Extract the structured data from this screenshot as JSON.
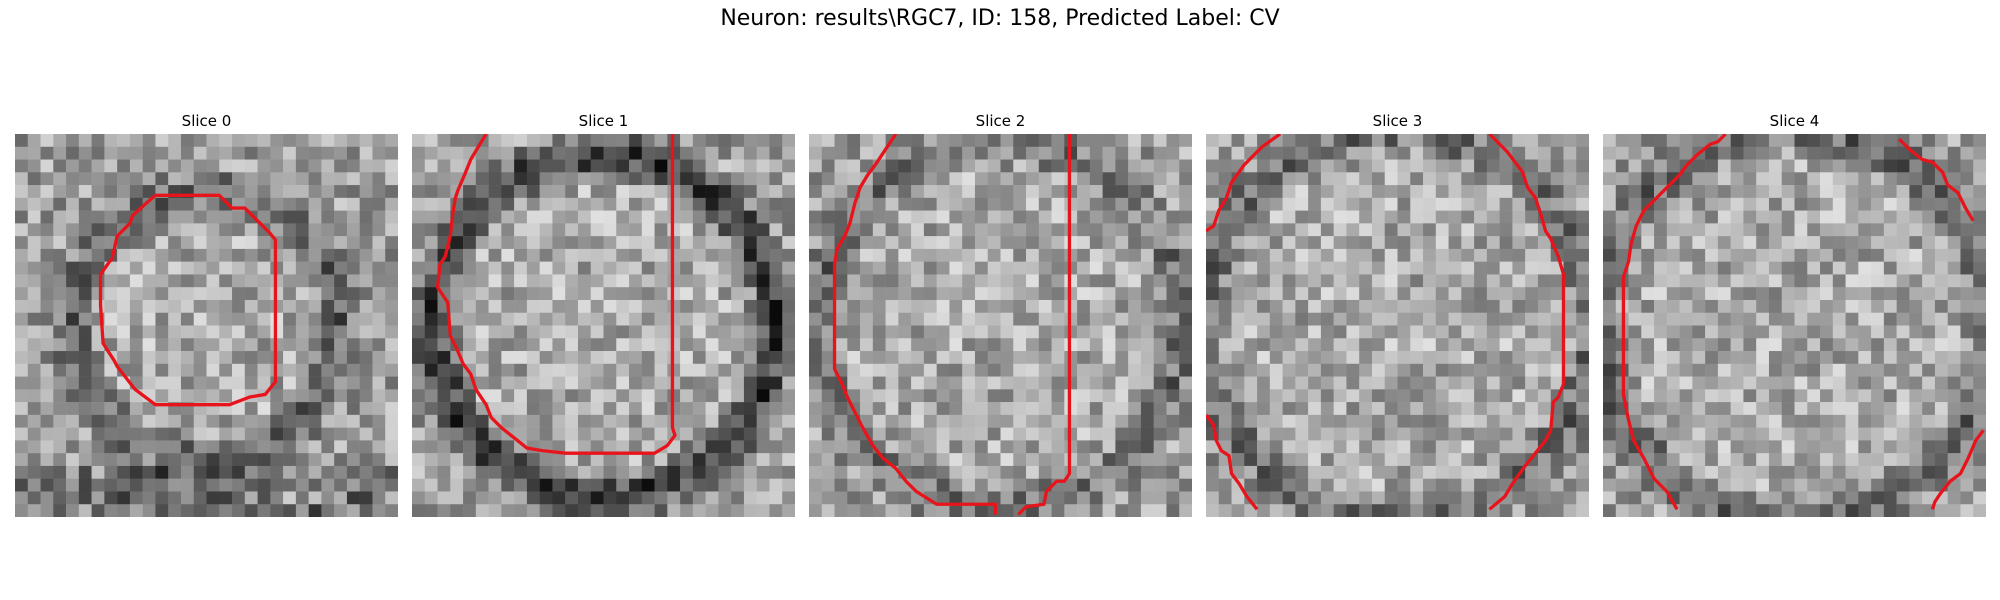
{
  "figure": {
    "title": "Neuron: results\\RGC7, ID: 158, Predicted Label: CV"
  },
  "panels": [
    {
      "title": "Slice 0",
      "seed": 11,
      "ring": 0.72,
      "dark_ring": 0.45,
      "contour": "contour-0"
    },
    {
      "title": "Slice 1",
      "seed": 23,
      "ring": 0.92,
      "dark_ring": 0.8,
      "contour": "contour-1"
    },
    {
      "title": "Slice 2",
      "seed": 37,
      "ring": 0.98,
      "dark_ring": 0.35,
      "contour": "contour-2"
    },
    {
      "title": "Slice 3",
      "seed": 51,
      "ring": 1.05,
      "dark_ring": 0.4,
      "contour": "contour-3"
    },
    {
      "title": "Slice 4",
      "seed": 67,
      "ring": 1.05,
      "dark_ring": 0.45,
      "contour": "contour-4"
    }
  ],
  "colors": {
    "contour": "#e8141c",
    "background": "#ffffff"
  }
}
